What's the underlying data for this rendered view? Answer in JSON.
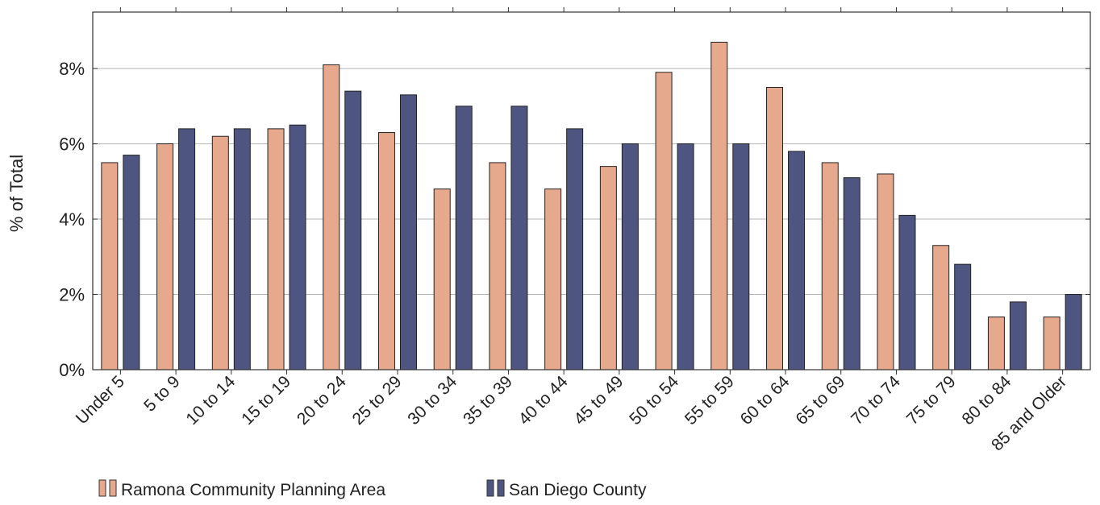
{
  "chart_data": {
    "type": "bar",
    "title": "",
    "xlabel": "",
    "ylabel": "% of Total",
    "ylim": [
      0,
      9.5
    ],
    "y_ticks": [
      0,
      2,
      4,
      6,
      8
    ],
    "y_tick_labels": [
      "0%",
      "2%",
      "4%",
      "6%",
      "8%"
    ],
    "grid": "horizontal",
    "legend_position": "bottom-left",
    "categories": [
      "Under 5",
      "5 to 9",
      "10 to 14",
      "15 to 19",
      "20 to 24",
      "25 to 29",
      "30 to 34",
      "35 to 39",
      "40 to 44",
      "45 to 49",
      "50 to 54",
      "55 to 59",
      "60 to 64",
      "65 to 69",
      "70 to 74",
      "75 to 79",
      "80 to 84",
      "85 and Older"
    ],
    "series": [
      {
        "name": "Ramona Community Planning Area",
        "color": "#e6a98e",
        "values": [
          5.5,
          6.0,
          6.2,
          6.4,
          8.1,
          6.3,
          4.8,
          5.5,
          4.8,
          5.4,
          7.9,
          8.7,
          7.5,
          5.5,
          5.2,
          3.3,
          1.4,
          1.4
        ]
      },
      {
        "name": "San Diego County",
        "color": "#4d5580",
        "values": [
          5.7,
          6.4,
          6.4,
          6.5,
          7.4,
          7.3,
          7.0,
          7.0,
          6.4,
          6.0,
          6.0,
          6.0,
          5.8,
          5.1,
          4.1,
          2.8,
          1.8,
          2.0
        ]
      }
    ]
  }
}
